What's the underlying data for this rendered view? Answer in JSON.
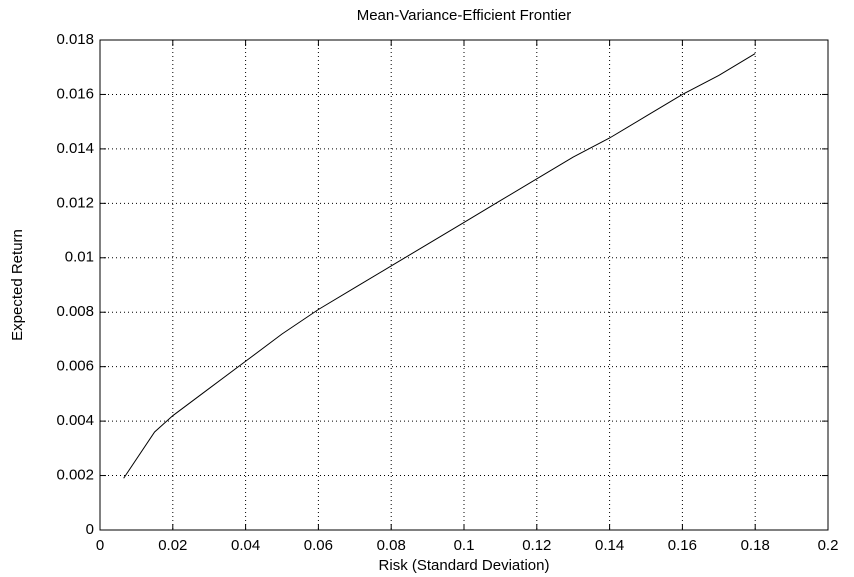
{
  "chart_data": {
    "type": "line",
    "title": "Mean-Variance-Efficient Frontier",
    "xlabel": "Risk (Standard Deviation)",
    "ylabel": "Expected Return",
    "x": [
      0.0065,
      0.015,
      0.02,
      0.03,
      0.04,
      0.05,
      0.06,
      0.07,
      0.08,
      0.09,
      0.1,
      0.11,
      0.12,
      0.13,
      0.14,
      0.15,
      0.16,
      0.17,
      0.18
    ],
    "series": [
      {
        "color": "#000000",
        "values": [
          0.0019,
          0.0036,
          0.0042,
          0.0052,
          0.0062,
          0.0072,
          0.0081,
          0.0089,
          0.0097,
          0.0105,
          0.0113,
          0.0121,
          0.0129,
          0.0137,
          0.0144,
          0.0152,
          0.016,
          0.0167,
          0.0175
        ]
      }
    ],
    "xlim": [
      0,
      0.2
    ],
    "xticks": [
      0,
      0.02,
      0.04,
      0.06,
      0.08,
      0.1,
      0.12,
      0.14,
      0.16,
      0.18,
      0.2
    ],
    "ylim": [
      0,
      0.018
    ],
    "yticks": [
      0,
      0.002,
      0.004,
      0.006,
      0.008,
      0.01,
      0.012,
      0.014,
      0.016,
      0.018
    ],
    "grid": true
  }
}
